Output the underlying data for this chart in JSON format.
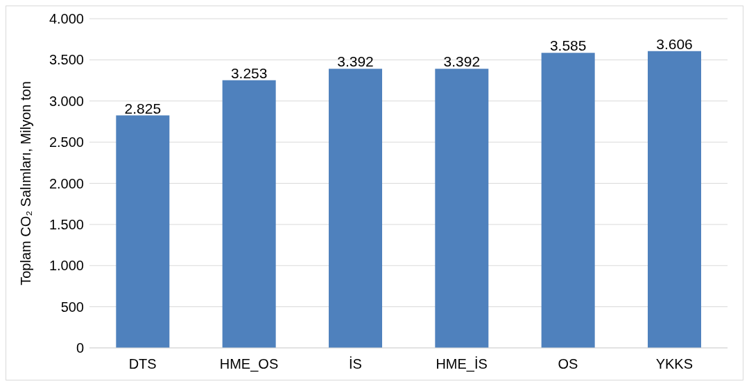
{
  "chart_data": {
    "type": "bar",
    "ylabel": "Toplam CO₂ Salımları, Milyon ton",
    "categories": [
      "DTS",
      "HME_OS",
      "İS",
      "HME_İS",
      "OS",
      "YKKS"
    ],
    "values": [
      2825,
      3253,
      3392,
      3392,
      3585,
      3606
    ],
    "value_labels": [
      "2.825",
      "3.253",
      "3.392",
      "3.392",
      "3.585",
      "3.606"
    ],
    "color": "#4f81bd",
    "ylim": [
      0,
      4000
    ],
    "yticks": [
      0,
      500,
      {
        "value": 1000,
        "label": "1.000"
      },
      {
        "value": 1500,
        "label": "1.500"
      },
      {
        "value": 2000,
        "label": "2.000"
      },
      {
        "value": 2500,
        "label": "2.500"
      },
      {
        "value": 3000,
        "label": "3.000"
      },
      {
        "value": 3500,
        "label": "3.500"
      },
      {
        "value": 4000,
        "label": "4.000"
      }
    ],
    "grid": "y",
    "legend": false
  }
}
